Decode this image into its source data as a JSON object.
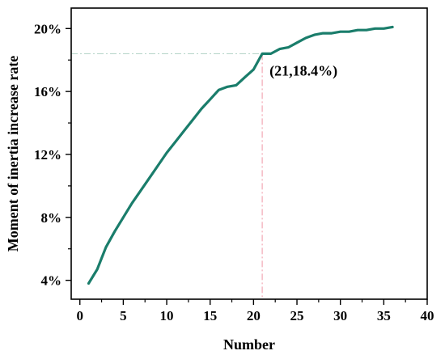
{
  "chart_data": {
    "type": "line",
    "xlabel": "Number",
    "ylabel": "Moment of inertia increase rate",
    "xlim": [
      -1,
      40
    ],
    "ylim": [
      2.8,
      21.3
    ],
    "x_ticks": [
      0,
      5,
      10,
      15,
      20,
      25,
      30,
      35,
      40
    ],
    "y_ticks": [
      4,
      8,
      12,
      16,
      20
    ],
    "y_tick_labels": [
      "4%",
      "8%",
      "12%",
      "16%",
      "20%"
    ],
    "grid": false,
    "series": [
      {
        "x": [
          1,
          2,
          3,
          4,
          5,
          6,
          7,
          8,
          9,
          10,
          11,
          12,
          13,
          14,
          15,
          16,
          17,
          18,
          19,
          20,
          21,
          22,
          23,
          24,
          25,
          26,
          27,
          28,
          29,
          30,
          31,
          32,
          33,
          34,
          35,
          36
        ],
        "values": [
          3.8,
          4.7,
          6.1,
          7.1,
          8.0,
          8.9,
          9.7,
          10.5,
          11.3,
          12.1,
          12.8,
          13.5,
          14.2,
          14.9,
          15.5,
          16.1,
          16.3,
          16.4,
          16.9,
          17.4,
          18.4,
          18.4,
          18.7,
          18.8,
          19.1,
          19.4,
          19.6,
          19.7,
          19.7,
          19.8,
          19.8,
          19.9,
          19.9,
          20.0,
          20.0,
          20.1
        ],
        "color": "#1a7d6b"
      }
    ],
    "annotations": [
      {
        "x": 21,
        "y": 18.4,
        "text": "(21,18.4%)"
      }
    ],
    "reference_line_colors": {
      "horizontal": "#b9d6cc",
      "vertical": "#f2a8b4"
    }
  }
}
